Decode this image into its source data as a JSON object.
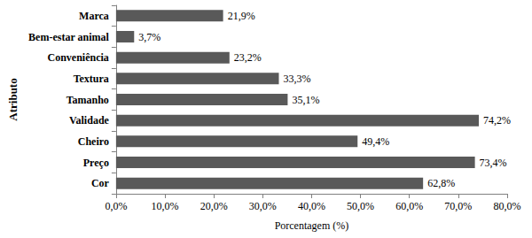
{
  "chart_data": {
    "type": "bar",
    "orientation": "horizontal",
    "x_label": "Porcentagem (%)",
    "y_label": "Atributo",
    "categories": [
      "Marca",
      "Bem-estar animal",
      "Conveniência",
      "Textura",
      "Tamanho",
      "Validade",
      "Cheiro",
      "Preço",
      "Cor"
    ],
    "values": [
      21.9,
      3.7,
      23.2,
      33.3,
      35.1,
      74.2,
      49.4,
      73.4,
      62.8
    ],
    "value_labels": [
      "21,9%",
      "3,7%",
      "23,2%",
      "33,3%",
      "35,1%",
      "74,2%",
      "49,4%",
      "73,4%",
      "62,8%"
    ],
    "color": "#595959",
    "xlim": [
      0,
      80
    ],
    "xticks": [
      {
        "value": 0,
        "label": "0,0%"
      },
      {
        "value": 10,
        "label": "10,0%"
      },
      {
        "value": 20,
        "label": "20,0%"
      },
      {
        "value": 30,
        "label": "30,0%"
      },
      {
        "value": 40,
        "label": "40,0%"
      },
      {
        "value": 50,
        "label": "50,0%"
      },
      {
        "value": 60,
        "label": "60,0%"
      },
      {
        "value": 70,
        "label": "70,0%"
      },
      {
        "value": 80,
        "label": "80,0%"
      }
    ],
    "grid": false,
    "data_labels": true
  }
}
